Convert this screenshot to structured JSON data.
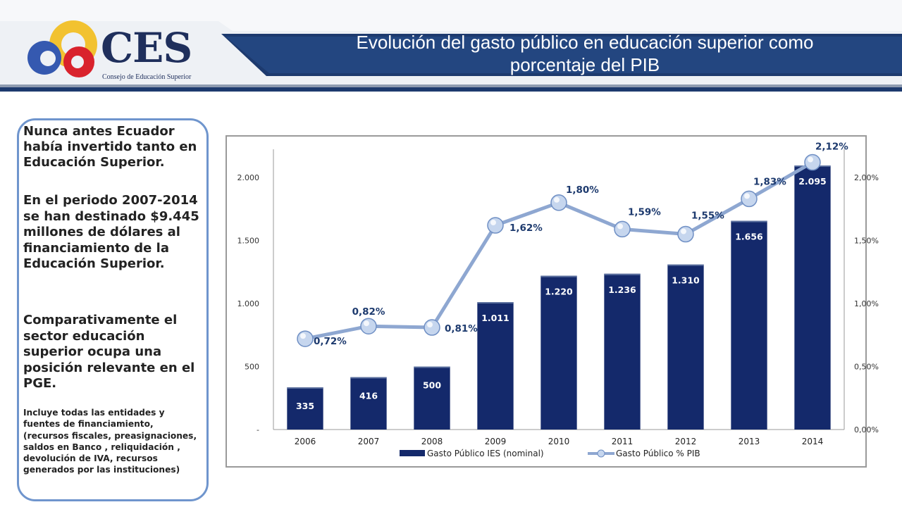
{
  "header": {
    "logo_text": "CES",
    "logo_subtitle": "Consejo de Educación Superior",
    "title_line1": "Evolución del gasto público en educación superior como",
    "title_line2": "porcentaje del PIB"
  },
  "sidebar": {
    "p1": "Nunca antes Ecuador había invertido tanto en Educación Superior.",
    "p2_before": "En el periodo 2007-2014 se  han destinado ",
    "p2_amount": "$9.445",
    "p2_after": " millones de dólares al financiamiento de la Educación Superior.",
    "p3": "Comparativamente el sector educación superior ocupa una posición relevante en el PGE.",
    "p4": "Incluye todas las entidades y fuentes de financiamiento, (recursos fiscales, preasignaciones,  saldos en Banco , reliquidación , devolución de IVA,  recursos generados por las instituciones)"
  },
  "colors": {
    "bar": "#14296b",
    "line": "#8ea7d1",
    "marker": "#c6d6ee",
    "header_band": "#1d3a6e",
    "frame_border": "#6f95cd"
  },
  "chart_data": {
    "type": "bar",
    "categories": [
      "2006",
      "2007",
      "2008",
      "2009",
      "2010",
      "2011",
      "2012",
      "2013",
      "2014"
    ],
    "series": [
      {
        "name": "Gasto Público IES (nominal)",
        "type": "bar",
        "axis": "left",
        "values": [
          335,
          416,
          500,
          1011,
          1220,
          1236,
          1310,
          1656,
          2095
        ],
        "labels": [
          "335",
          "416",
          "500",
          "1.011",
          "1.220",
          "1.236",
          "1.310",
          "1.656",
          "2.095"
        ]
      },
      {
        "name": "Gasto Público % PIB",
        "type": "line",
        "axis": "right",
        "values": [
          0.72,
          0.82,
          0.81,
          1.62,
          1.8,
          1.59,
          1.55,
          1.83,
          2.12
        ],
        "labels": [
          "0,72%",
          "0,82%",
          "0,81%",
          "1,62%",
          "1,80%",
          "1,59%",
          "1,55%",
          "1,83%",
          "2,12%"
        ]
      }
    ],
    "y_left": {
      "ylim": [
        0,
        2000
      ],
      "ticks": [
        "-",
        "500",
        "1.000",
        "1.500",
        "2.000"
      ]
    },
    "y_right": {
      "ylim": [
        0,
        2.0
      ],
      "ticks": [
        "0,00%",
        "0,50%",
        "1,00%",
        "1,50%",
        "2,00%"
      ]
    },
    "legend_position": "bottom",
    "grid": false
  }
}
